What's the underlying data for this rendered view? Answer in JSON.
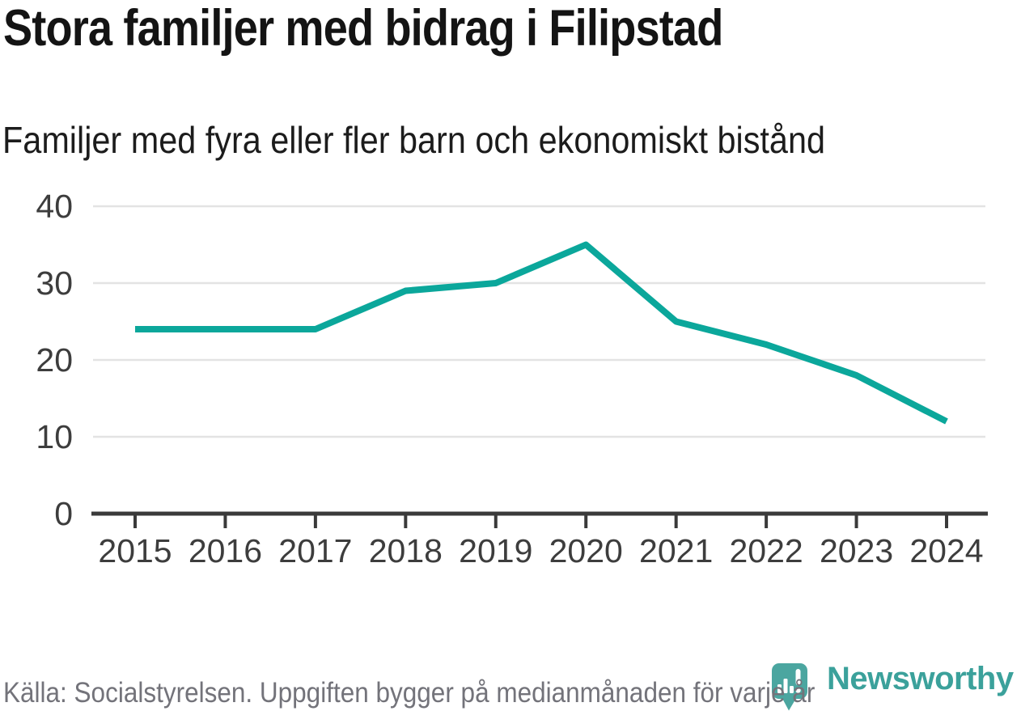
{
  "header": {
    "title": "Stora familjer med bidrag i Filipstad",
    "subtitle": "Familjer med fyra eller fler barn och ekonomiskt bistånd"
  },
  "chart_data": {
    "type": "line",
    "title": "Stora familjer med bidrag i Filipstad",
    "subtitle": "Familjer med fyra eller fler barn och ekonomiskt bistånd",
    "x": [
      "2015",
      "2016",
      "2017",
      "2018",
      "2019",
      "2020",
      "2021",
      "2022",
      "2023",
      "2024"
    ],
    "series": [
      {
        "name": "Familjer med fyra eller fler barn och ekonomiskt bistånd",
        "values": [
          24,
          24,
          24,
          29,
          30,
          35,
          25,
          22,
          18,
          12
        ]
      }
    ],
    "xlabel": "",
    "ylabel": "",
    "ylim": [
      0,
      40
    ],
    "yticks": [
      0,
      10,
      20,
      30,
      40
    ],
    "grid": true,
    "legend": "none",
    "line_color": "#0ba79b"
  },
  "footer": {
    "source": "Källa: Socialstyrelsen. Uppgiften bygger på medianmånaden för varje år",
    "brand": "Newsworthy"
  },
  "icons": {
    "logo": "newsworthy-speech-bubble-barchart-icon"
  },
  "colors": {
    "page_bg": "#ffffff",
    "line": "#0ba79b",
    "axis": "#3a3a3a",
    "grid": "#e3e3e3",
    "tick_label": "#3d3d3d",
    "title": "#141414",
    "subtitle": "#1c1c1c",
    "source_text": "#73737a",
    "brand_teal": "#3ba19b",
    "logo_bubble": "#4ba6a0",
    "logo_glyph": "#ffffff"
  }
}
